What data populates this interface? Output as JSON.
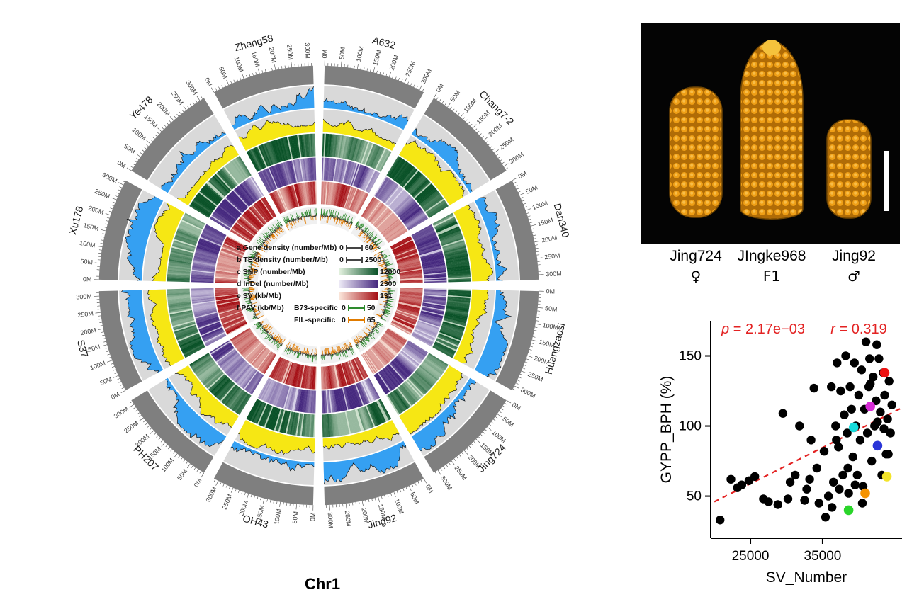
{
  "circos": {
    "title": "Chr1",
    "genomes": [
      "A632",
      "Chang7-2",
      "Dan340",
      "Huangzaosi",
      "Jing724",
      "Jing92",
      "OH43",
      "PH207",
      "S37",
      "Xu178",
      "Ye478",
      "Zheng58"
    ],
    "tick_labels": [
      "0M",
      "50M",
      "100M",
      "150M",
      "200M",
      "250M",
      "300M"
    ],
    "legend": {
      "rows": [
        {
          "id": "a",
          "label": "a Gene density (number/Mb)",
          "min": "0",
          "max": "60"
        },
        {
          "id": "b",
          "label": "b TE density (number/Mb)",
          "min": "0",
          "max": "2500"
        },
        {
          "id": "c",
          "label": "c SNP (number/Mb)",
          "max": "12000",
          "from": "#e3f1df",
          "to": "#0a5228"
        },
        {
          "id": "d",
          "label": "d InDel (number/Mb)",
          "max": "2300",
          "from": "#edeaf6",
          "to": "#46297f"
        },
        {
          "id": "e",
          "label": "e SV (kb/Mb)",
          "max": "131",
          "from": "#fbe6da",
          "to": "#a50f15"
        },
        {
          "id": "f",
          "label": "f PAV (kb/Mb)",
          "sub1_label": "B73-specific",
          "sub1_min": "0",
          "sub1_max": "50",
          "sub1_color": "#2e8b2e",
          "sub2_label": "FIL-specific",
          "sub2_min": "0",
          "sub2_max": "65",
          "sub2_color": "#e07b00"
        }
      ]
    },
    "track_colors": {
      "karyotype": "#7f7f7f",
      "track_bg": "#d9d9d9",
      "gene_density": "#35a0f2",
      "te_density": "#f6e714",
      "snp_light": "#e3f1df",
      "snp_dark": "#0a5228",
      "indel_light": "#edeaf6",
      "indel_dark": "#46297f",
      "sv_light": "#fbe6da",
      "sv_dark": "#a50f15",
      "pav_b73": "#2e8b2e",
      "pav_fil": "#e07b00"
    }
  },
  "photo": {
    "parents": [
      {
        "name": "Jing724",
        "role": "♀"
      },
      {
        "name": "JIngke968",
        "role": "F1"
      },
      {
        "name": "Jing92",
        "role": "♂"
      }
    ]
  },
  "chart_data": {
    "type": "scatter",
    "title": "",
    "xlabel": "SV_Number",
    "ylabel": "GYPP_BPH (%)",
    "xlim": [
      19500,
      46000
    ],
    "ylim": [
      20,
      175
    ],
    "xticks": [
      25000,
      35000
    ],
    "yticks": [
      50,
      100,
      150
    ],
    "grid": false,
    "legend_position": "none",
    "annotation": {
      "p_var": "p",
      "p_text": " = 2.17e−03",
      "r_var": "r",
      "r_text": " = 0.319",
      "color": "#e32222"
    },
    "regression_line": {
      "x1": 20000,
      "y1": 46,
      "x2": 46000,
      "y2": 113,
      "style": "dashed",
      "color": "#e32222"
    },
    "point_color": "#000000",
    "points": [
      [
        20800,
        33
      ],
      [
        22300,
        62
      ],
      [
        23800,
        58
      ],
      [
        25600,
        64
      ],
      [
        26800,
        48
      ],
      [
        29500,
        109
      ],
      [
        30500,
        60
      ],
      [
        31800,
        100
      ],
      [
        32500,
        47
      ],
      [
        33200,
        62
      ],
      [
        33800,
        127
      ],
      [
        34500,
        45
      ],
      [
        35200,
        82
      ],
      [
        35800,
        50
      ],
      [
        36200,
        128
      ],
      [
        36500,
        60
      ],
      [
        36800,
        100
      ],
      [
        37000,
        145
      ],
      [
        37200,
        85
      ],
      [
        37500,
        125
      ],
      [
        37800,
        65
      ],
      [
        38000,
        108
      ],
      [
        38200,
        150
      ],
      [
        38400,
        95
      ],
      [
        38600,
        52
      ],
      [
        38800,
        128
      ],
      [
        39000,
        112
      ],
      [
        39200,
        78
      ],
      [
        39400,
        145
      ],
      [
        39600,
        100
      ],
      [
        39800,
        65
      ],
      [
        40000,
        122
      ],
      [
        40200,
        90
      ],
      [
        40400,
        140
      ],
      [
        40600,
        57
      ],
      [
        40800,
        112
      ],
      [
        41000,
        160
      ],
      [
        41200,
        95
      ],
      [
        41400,
        128
      ],
      [
        41600,
        130
      ],
      [
        41800,
        75
      ],
      [
        42000,
        135
      ],
      [
        42200,
        100
      ],
      [
        42400,
        118
      ],
      [
        42600,
        103
      ],
      [
        42800,
        148
      ],
      [
        43000,
        110
      ],
      [
        43200,
        65
      ],
      [
        43400,
        138
      ],
      [
        43600,
        122
      ],
      [
        43800,
        80
      ],
      [
        44000,
        105
      ],
      [
        44200,
        132
      ],
      [
        44400,
        95
      ],
      [
        44600,
        115
      ],
      [
        36300,
        42
      ],
      [
        37300,
        55
      ],
      [
        38500,
        70
      ],
      [
        39500,
        58
      ],
      [
        40500,
        45
      ],
      [
        41500,
        148
      ],
      [
        42500,
        158
      ],
      [
        43500,
        98
      ],
      [
        44100,
        80
      ],
      [
        36900,
        90
      ],
      [
        35400,
        35
      ],
      [
        34200,
        70
      ],
      [
        33400,
        90
      ],
      [
        32800,
        55
      ],
      [
        31200,
        65
      ],
      [
        30200,
        48
      ],
      [
        28800,
        44
      ],
      [
        27500,
        46
      ],
      [
        24800,
        61
      ],
      [
        23200,
        56
      ]
    ],
    "highlight_points": [
      {
        "x": 43600,
        "y": 138,
        "color": "#ee1111"
      },
      {
        "x": 41600,
        "y": 114,
        "color": "#d52bd5"
      },
      {
        "x": 39300,
        "y": 99,
        "color": "#15dcdc"
      },
      {
        "x": 42600,
        "y": 86,
        "color": "#2a35d8"
      },
      {
        "x": 43900,
        "y": 64,
        "color": "#f3e42a"
      },
      {
        "x": 40900,
        "y": 52,
        "color": "#f59300"
      },
      {
        "x": 38600,
        "y": 40,
        "color": "#2ad52a"
      }
    ]
  }
}
